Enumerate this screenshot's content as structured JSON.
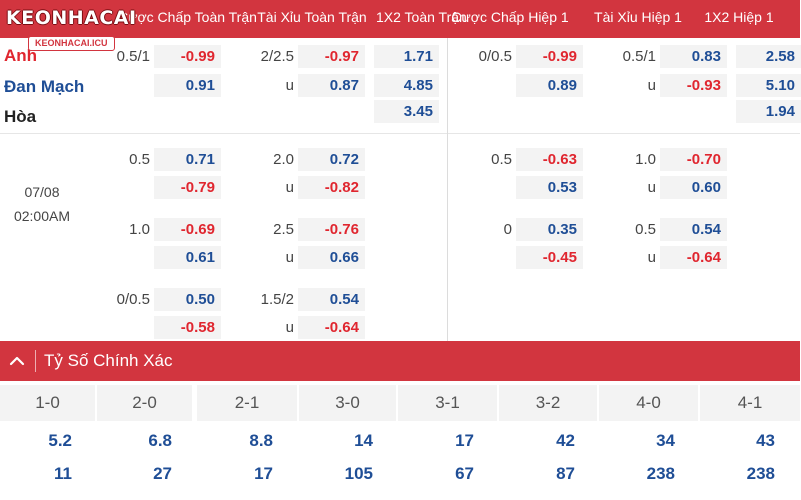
{
  "logo": {
    "main": "KEONHACAI",
    "sub": "KEONHACAI.ICU"
  },
  "header": {
    "columns": [
      "Cược Chấp Toàn Trận",
      "Tài Xỉu Toàn Trận",
      "1X2 Toàn Trận",
      "Cược Chấp Hiệp 1",
      "Tài Xỉu Hiệp 1",
      "1X2 Hiệp 1"
    ]
  },
  "match": {
    "home": "Anh",
    "away": "Đan Mạch",
    "draw": "Hòa",
    "date": "07/08",
    "time": "02:00AM",
    "colors": {
      "home": "#e0262f",
      "away": "#1f4e96",
      "draw": "#222222"
    }
  },
  "odds": [
    {
      "ft_hdp": {
        "line": "0.5/1",
        "top": "-0.99",
        "bottom": "0.91"
      },
      "ft_ou": {
        "line": "2/2.5",
        "under": "u",
        "top": "-0.97",
        "bottom": "0.87"
      },
      "ft_1x2": [
        "1.71",
        "4.85",
        "3.45"
      ],
      "h1_hdp": {
        "line": "0/0.5",
        "top": "-0.99",
        "bottom": "0.89"
      },
      "h1_ou": {
        "line": "0.5/1",
        "under": "u",
        "top": "0.83",
        "bottom": "-0.93"
      },
      "h1_1x2": [
        "2.58",
        "5.10",
        "1.94"
      ]
    },
    {
      "ft_hdp": {
        "line": "0.5",
        "top": "0.71",
        "bottom": "-0.79"
      },
      "ft_ou": {
        "line": "2.0",
        "under": "u",
        "top": "0.72",
        "bottom": "-0.82"
      },
      "h1_hdp": {
        "line": "0.5",
        "top": "-0.63",
        "bottom": "0.53"
      },
      "h1_ou": {
        "line": "1.0",
        "under": "u",
        "top": "-0.70",
        "bottom": "0.60"
      }
    },
    {
      "ft_hdp": {
        "line": "1.0",
        "top": "-0.69",
        "bottom": "0.61"
      },
      "ft_ou": {
        "line": "2.5",
        "under": "u",
        "top": "-0.76",
        "bottom": "0.66"
      },
      "h1_hdp": {
        "line": "0",
        "top": "0.35",
        "bottom": "-0.45"
      },
      "h1_ou": {
        "line": "0.5",
        "under": "u",
        "top": "0.54",
        "bottom": "-0.64"
      }
    },
    {
      "ft_hdp": {
        "line": "0/0.5",
        "top": "0.50",
        "bottom": "-0.58"
      },
      "ft_ou": {
        "line": "1.5/2",
        "under": "u",
        "top": "0.54",
        "bottom": "-0.64"
      }
    }
  ],
  "correct_score": {
    "title": "Tỷ Số Chính Xác",
    "scores": [
      "1-0",
      "2-0",
      "2-1",
      "3-0",
      "3-1",
      "3-2",
      "4-0",
      "4-1"
    ],
    "home_odds": [
      "5.2",
      "6.8",
      "8.8",
      "14",
      "17",
      "42",
      "34",
      "43"
    ],
    "away_odds": [
      "11",
      "27",
      "17",
      "105",
      "67",
      "87",
      "238",
      "238"
    ]
  },
  "icons": {
    "collapse": "chevron-up-icon"
  }
}
